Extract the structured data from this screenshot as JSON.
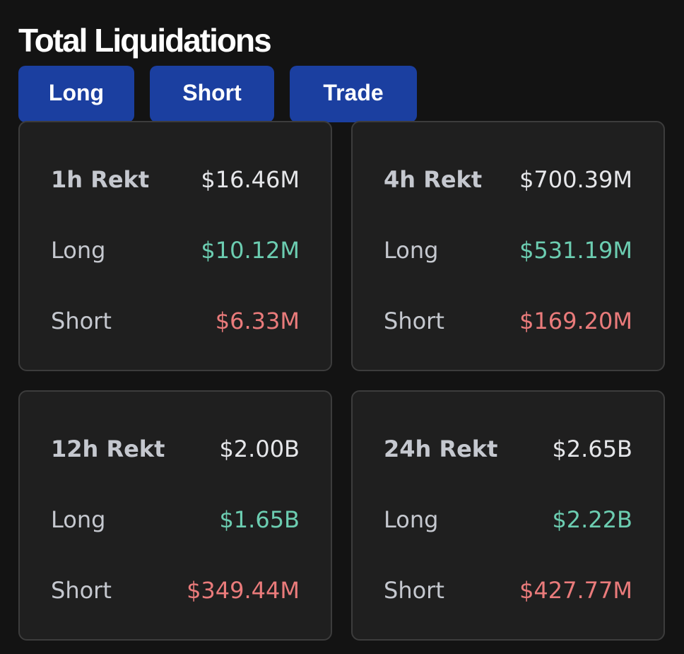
{
  "header": {
    "title": "Total Liquidations"
  },
  "tabs": [
    "Long",
    "Short",
    "Trade"
  ],
  "cards": [
    {
      "rows": [
        [
          "1h Rekt",
          "$16.46M"
        ],
        [
          "Long",
          "$10.12M"
        ],
        [
          "Short",
          "$6.33M"
        ]
      ]
    },
    {
      "rows": [
        [
          "4h Rekt",
          "$700.39M"
        ],
        [
          "Long",
          "$531.19M"
        ],
        [
          "Short",
          "$169.20M"
        ]
      ]
    },
    {
      "rows": [
        [
          "12h Rekt",
          "$2.00B"
        ],
        [
          "Long",
          "$1.65B"
        ],
        [
          "Short",
          "$349.44M"
        ]
      ]
    },
    {
      "rows": [
        [
          "24h Rekt",
          "$2.65B"
        ],
        [
          "Long",
          "$2.22B"
        ],
        [
          "Short",
          "$427.77M"
        ]
      ]
    }
  ]
}
